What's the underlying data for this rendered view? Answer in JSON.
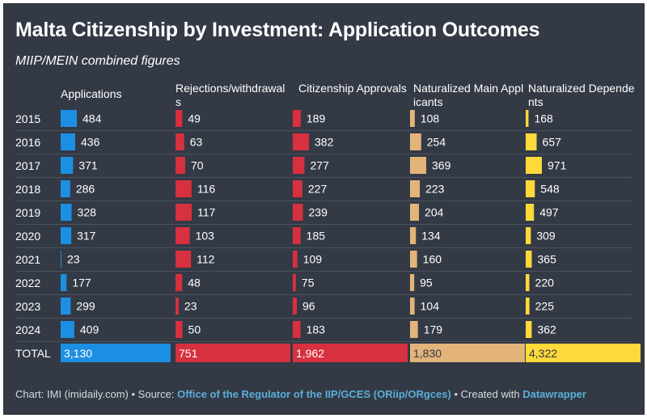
{
  "title": "Malta Citizenship by Investment: Application Outcomes",
  "subtitle": "MIIP/MEIN combined figures",
  "footer": {
    "credit": "Chart: IMI (imidaily.com)",
    "sep1": " • Source: ",
    "source": "Office of the Regulator of the IIP/GCES (ORiip/ORgces)",
    "sep2": " • Created with ",
    "tool": "Datawrapper"
  },
  "chart_data": {
    "type": "bar",
    "orientation": "horizontal",
    "categories": [
      "2015",
      "2016",
      "2017",
      "2018",
      "2019",
      "2020",
      "2021",
      "2022",
      "2023",
      "2024"
    ],
    "total_label": "TOTAL",
    "series": [
      {
        "name": "Applications",
        "color": "#1d8fe2",
        "values": [
          484,
          436,
          371,
          286,
          328,
          317,
          23,
          177,
          299,
          409
        ],
        "total": "3,130",
        "total_value": 3130
      },
      {
        "name": "Rejections/withdrawals",
        "color": "#d7303f",
        "values": [
          49,
          63,
          70,
          116,
          117,
          103,
          112,
          48,
          23,
          50
        ],
        "total": "751",
        "total_value": 751
      },
      {
        "name": "Citizenship Approvals",
        "color": "#d7303f",
        "values": [
          189,
          382,
          277,
          227,
          239,
          185,
          109,
          75,
          96,
          183
        ],
        "total": "1,962",
        "total_value": 1962
      },
      {
        "name": "Naturalized Main Applicants",
        "color": "#e2b47a",
        "values": [
          108,
          254,
          369,
          223,
          204,
          134,
          160,
          95,
          104,
          179
        ],
        "total": "1,830",
        "total_value": 1830
      },
      {
        "name": "Naturalized Dependents",
        "color": "#fed93a",
        "values": [
          168,
          657,
          971,
          548,
          497,
          309,
          365,
          220,
          225,
          362
        ],
        "total": "4,322",
        "total_value": 4322
      }
    ]
  }
}
